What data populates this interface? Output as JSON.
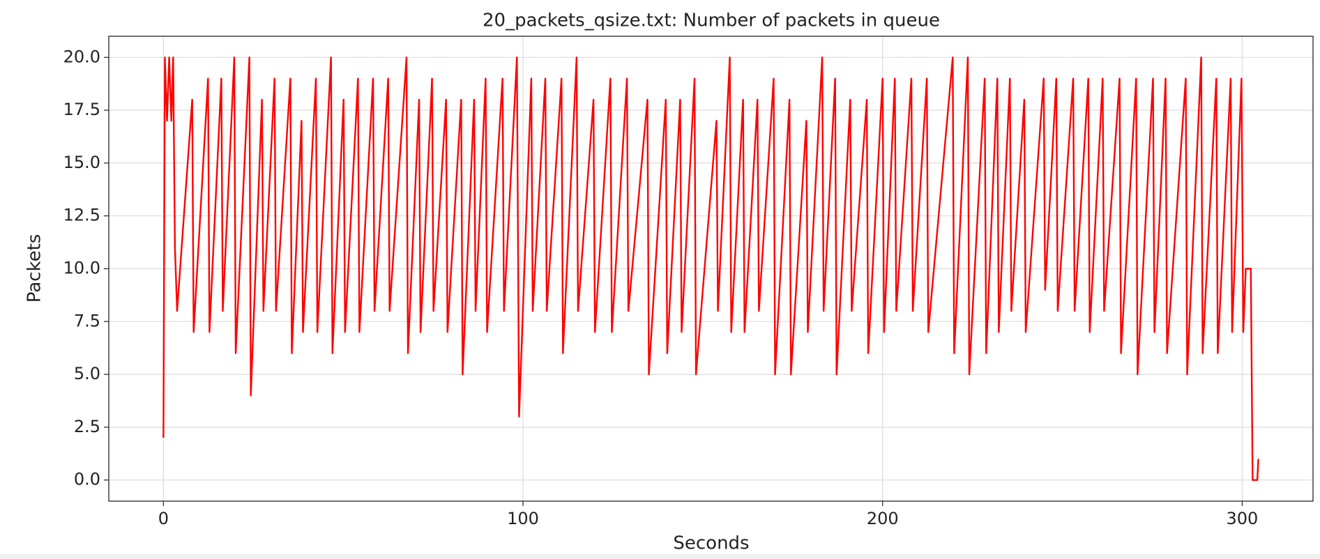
{
  "chart_data": {
    "type": "line",
    "title": "20_packets_qsize.txt: Number of packets in queue",
    "x_label": "Seconds",
    "y_label": "Packets",
    "color": "#ff0000",
    "grid": true,
    "xlim": [
      -15.2,
      319.7
    ],
    "ylim": [
      -1,
      21
    ],
    "xticks": [
      0,
      100,
      200,
      300
    ],
    "yticks": [
      {
        "value": 0,
        "label": "0.0"
      },
      2.5,
      {
        "value": 5,
        "label": "5.0"
      },
      7.5,
      {
        "value": 10,
        "label": "10.0"
      },
      12.5,
      {
        "value": 15,
        "label": "15.0"
      },
      17.5,
      {
        "value": 20,
        "label": "20.0"
      }
    ],
    "x": [
      0,
      0.4,
      1,
      1.6,
      2.2,
      2.7,
      3.2,
      3.8,
      8,
      8.4,
      12.4,
      12.8,
      16.1,
      16.5,
      19.7,
      20.1,
      23.9,
      24.3,
      27.4,
      27.8,
      30.9,
      31.3,
      35.3,
      35.7,
      38.4,
      38.8,
      42.4,
      42.8,
      46.6,
      47,
      50.1,
      50.5,
      54.1,
      54.5,
      58.3,
      58.7,
      62.5,
      62.9,
      67.6,
      68,
      71.1,
      71.5,
      74.7,
      75.1,
      78.6,
      79,
      82.8,
      83.2,
      86.4,
      86.8,
      89.6,
      90,
      94.3,
      94.7,
      98.3,
      98.9,
      102.3,
      102.7,
      106.2,
      106.6,
      110.7,
      111.1,
      114.9,
      115.3,
      119.6,
      120,
      124.3,
      124.7,
      128.9,
      129.3,
      134.6,
      135,
      139.7,
      140.1,
      143.7,
      144.1,
      147.7,
      148.1,
      153.8,
      154.2,
      157.5,
      157.9,
      161.2,
      161.6,
      165.2,
      165.6,
      169.7,
      170.1,
      174.1,
      174.5,
      178.8,
      179.2,
      183.2,
      183.6,
      186.8,
      187.2,
      191,
      191.4,
      195.6,
      196,
      200,
      200.4,
      203.4,
      203.8,
      208,
      208.4,
      212.3,
      212.7,
      219.5,
      219.9,
      223.7,
      224.1,
      228.4,
      228.8,
      231.9,
      232.3,
      235.4,
      235.8,
      239.4,
      239.8,
      244.8,
      245.2,
      248.3,
      248.7,
      253,
      253.4,
      257.2,
      257.6,
      261.2,
      261.6,
      265.9,
      266.3,
      270.5,
      270.9,
      275.2,
      275.6,
      278.7,
      279.1,
      284.3,
      284.7,
      288.6,
      289,
      292.8,
      293.2,
      296.8,
      297.2,
      299.8,
      300.3,
      301,
      302.4,
      302.9,
      304.2,
      304.5
    ],
    "values": [
      2,
      20,
      17,
      20,
      17,
      20,
      11,
      8,
      18,
      7,
      19,
      7,
      19,
      8,
      20,
      6,
      20,
      4,
      18,
      8,
      19,
      8,
      19,
      6,
      17,
      7,
      19,
      7,
      20,
      6,
      18,
      7,
      19,
      7,
      19,
      8,
      19,
      8,
      20,
      6,
      18,
      7,
      19,
      8,
      18,
      7,
      18,
      5,
      18,
      8,
      19,
      7,
      19,
      8,
      20,
      3,
      19,
      8,
      19,
      8,
      19,
      6,
      20,
      8,
      18,
      7,
      19,
      7,
      19,
      8,
      18,
      5,
      18,
      6,
      18,
      7,
      19,
      5,
      17,
      8,
      20,
      7,
      18,
      7,
      18,
      8,
      19,
      5,
      18,
      5,
      17,
      7,
      20,
      8,
      19,
      5,
      18,
      8,
      18,
      6,
      19,
      7,
      19,
      8,
      19,
      8,
      19,
      7,
      20,
      6,
      20,
      5,
      19,
      6,
      19,
      7,
      19,
      8,
      18,
      7,
      19,
      9,
      19,
      8,
      19,
      8,
      19,
      7,
      19,
      8,
      19,
      6,
      19,
      5,
      19,
      7,
      19,
      6,
      19,
      5,
      20,
      6,
      19,
      6,
      19,
      7,
      19,
      7,
      10,
      10,
      0,
      0,
      1
    ]
  }
}
